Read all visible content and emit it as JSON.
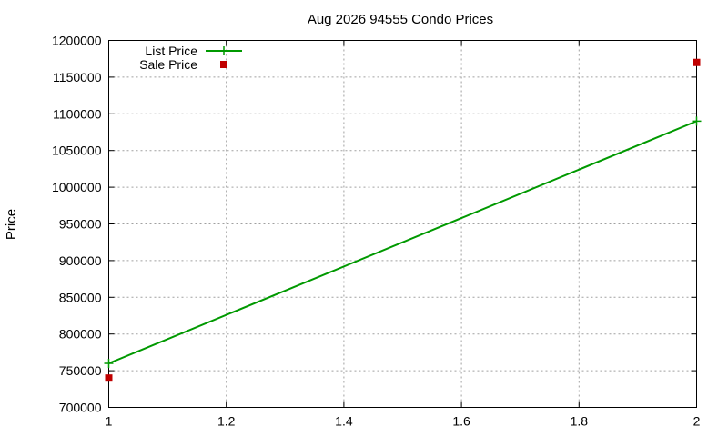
{
  "chart_data": {
    "type": "line",
    "title": "Aug 2026 94555 Condo Prices",
    "xlabel": "",
    "ylabel": "Price",
    "xlim": [
      1,
      2
    ],
    "ylim": [
      700000,
      1200000
    ],
    "x_ticks": [
      "1",
      "1.2",
      "1.4",
      "1.6",
      "1.8",
      "2"
    ],
    "y_ticks": [
      "700000",
      "750000",
      "800000",
      "850000",
      "900000",
      "950000",
      "1000000",
      "1050000",
      "1100000",
      "1150000",
      "1200000"
    ],
    "grid": true,
    "legend_position": "top-left",
    "series": [
      {
        "name": "List Price",
        "style": "line+cross",
        "color": "#009900",
        "x": [
          1,
          2
        ],
        "y": [
          760000,
          1090000
        ]
      },
      {
        "name": "Sale Price",
        "style": "square",
        "color": "#c00000",
        "x": [
          1,
          2
        ],
        "y": [
          740000,
          1170000
        ]
      }
    ]
  }
}
